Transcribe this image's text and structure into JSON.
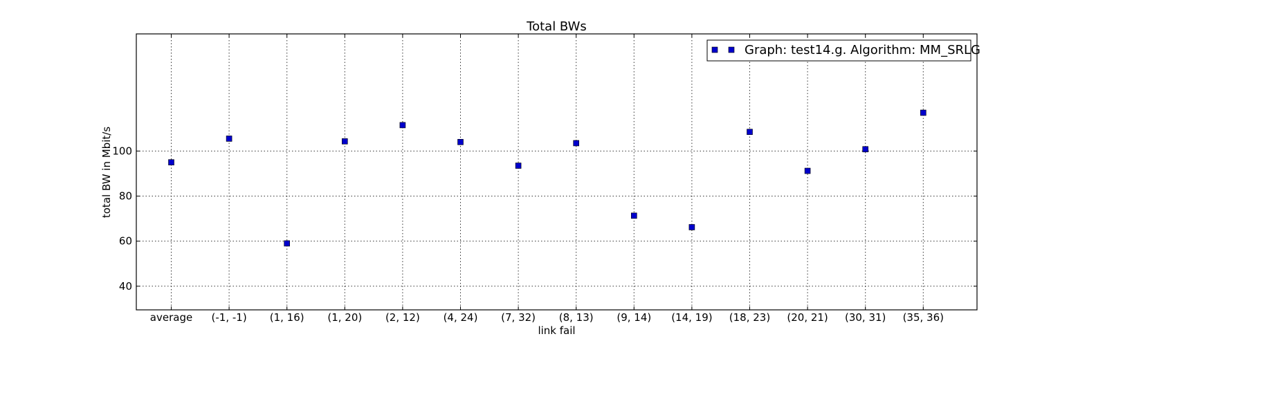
{
  "chart_data": {
    "type": "scatter",
    "title": "Total BWs",
    "xlabel": "link fail",
    "ylabel": "total BW in Mbit/s",
    "categories": [
      "average",
      "(-1, -1)",
      "(1, 16)",
      "(1, 20)",
      "(2, 12)",
      "(4, 24)",
      "(7, 32)",
      "(8, 13)",
      "(9, 14)",
      "(14, 19)",
      "(18, 23)",
      "(20, 21)",
      "(30, 31)",
      "(35, 36)"
    ],
    "yticks": [
      40,
      60,
      80,
      100
    ],
    "ylim": [
      29.5,
      152
    ],
    "grid": true,
    "legend_position": "top-right",
    "series": [
      {
        "name": "Graph: test14.g. Algorithm: MM_SRLG",
        "color": "#0000cc",
        "marker": "square",
        "values": [
          95,
          105.5,
          59,
          104.3,
          111.5,
          104,
          93.5,
          103.5,
          71.3,
          66.2,
          108.5,
          91.2,
          100.8,
          117
        ]
      }
    ]
  }
}
